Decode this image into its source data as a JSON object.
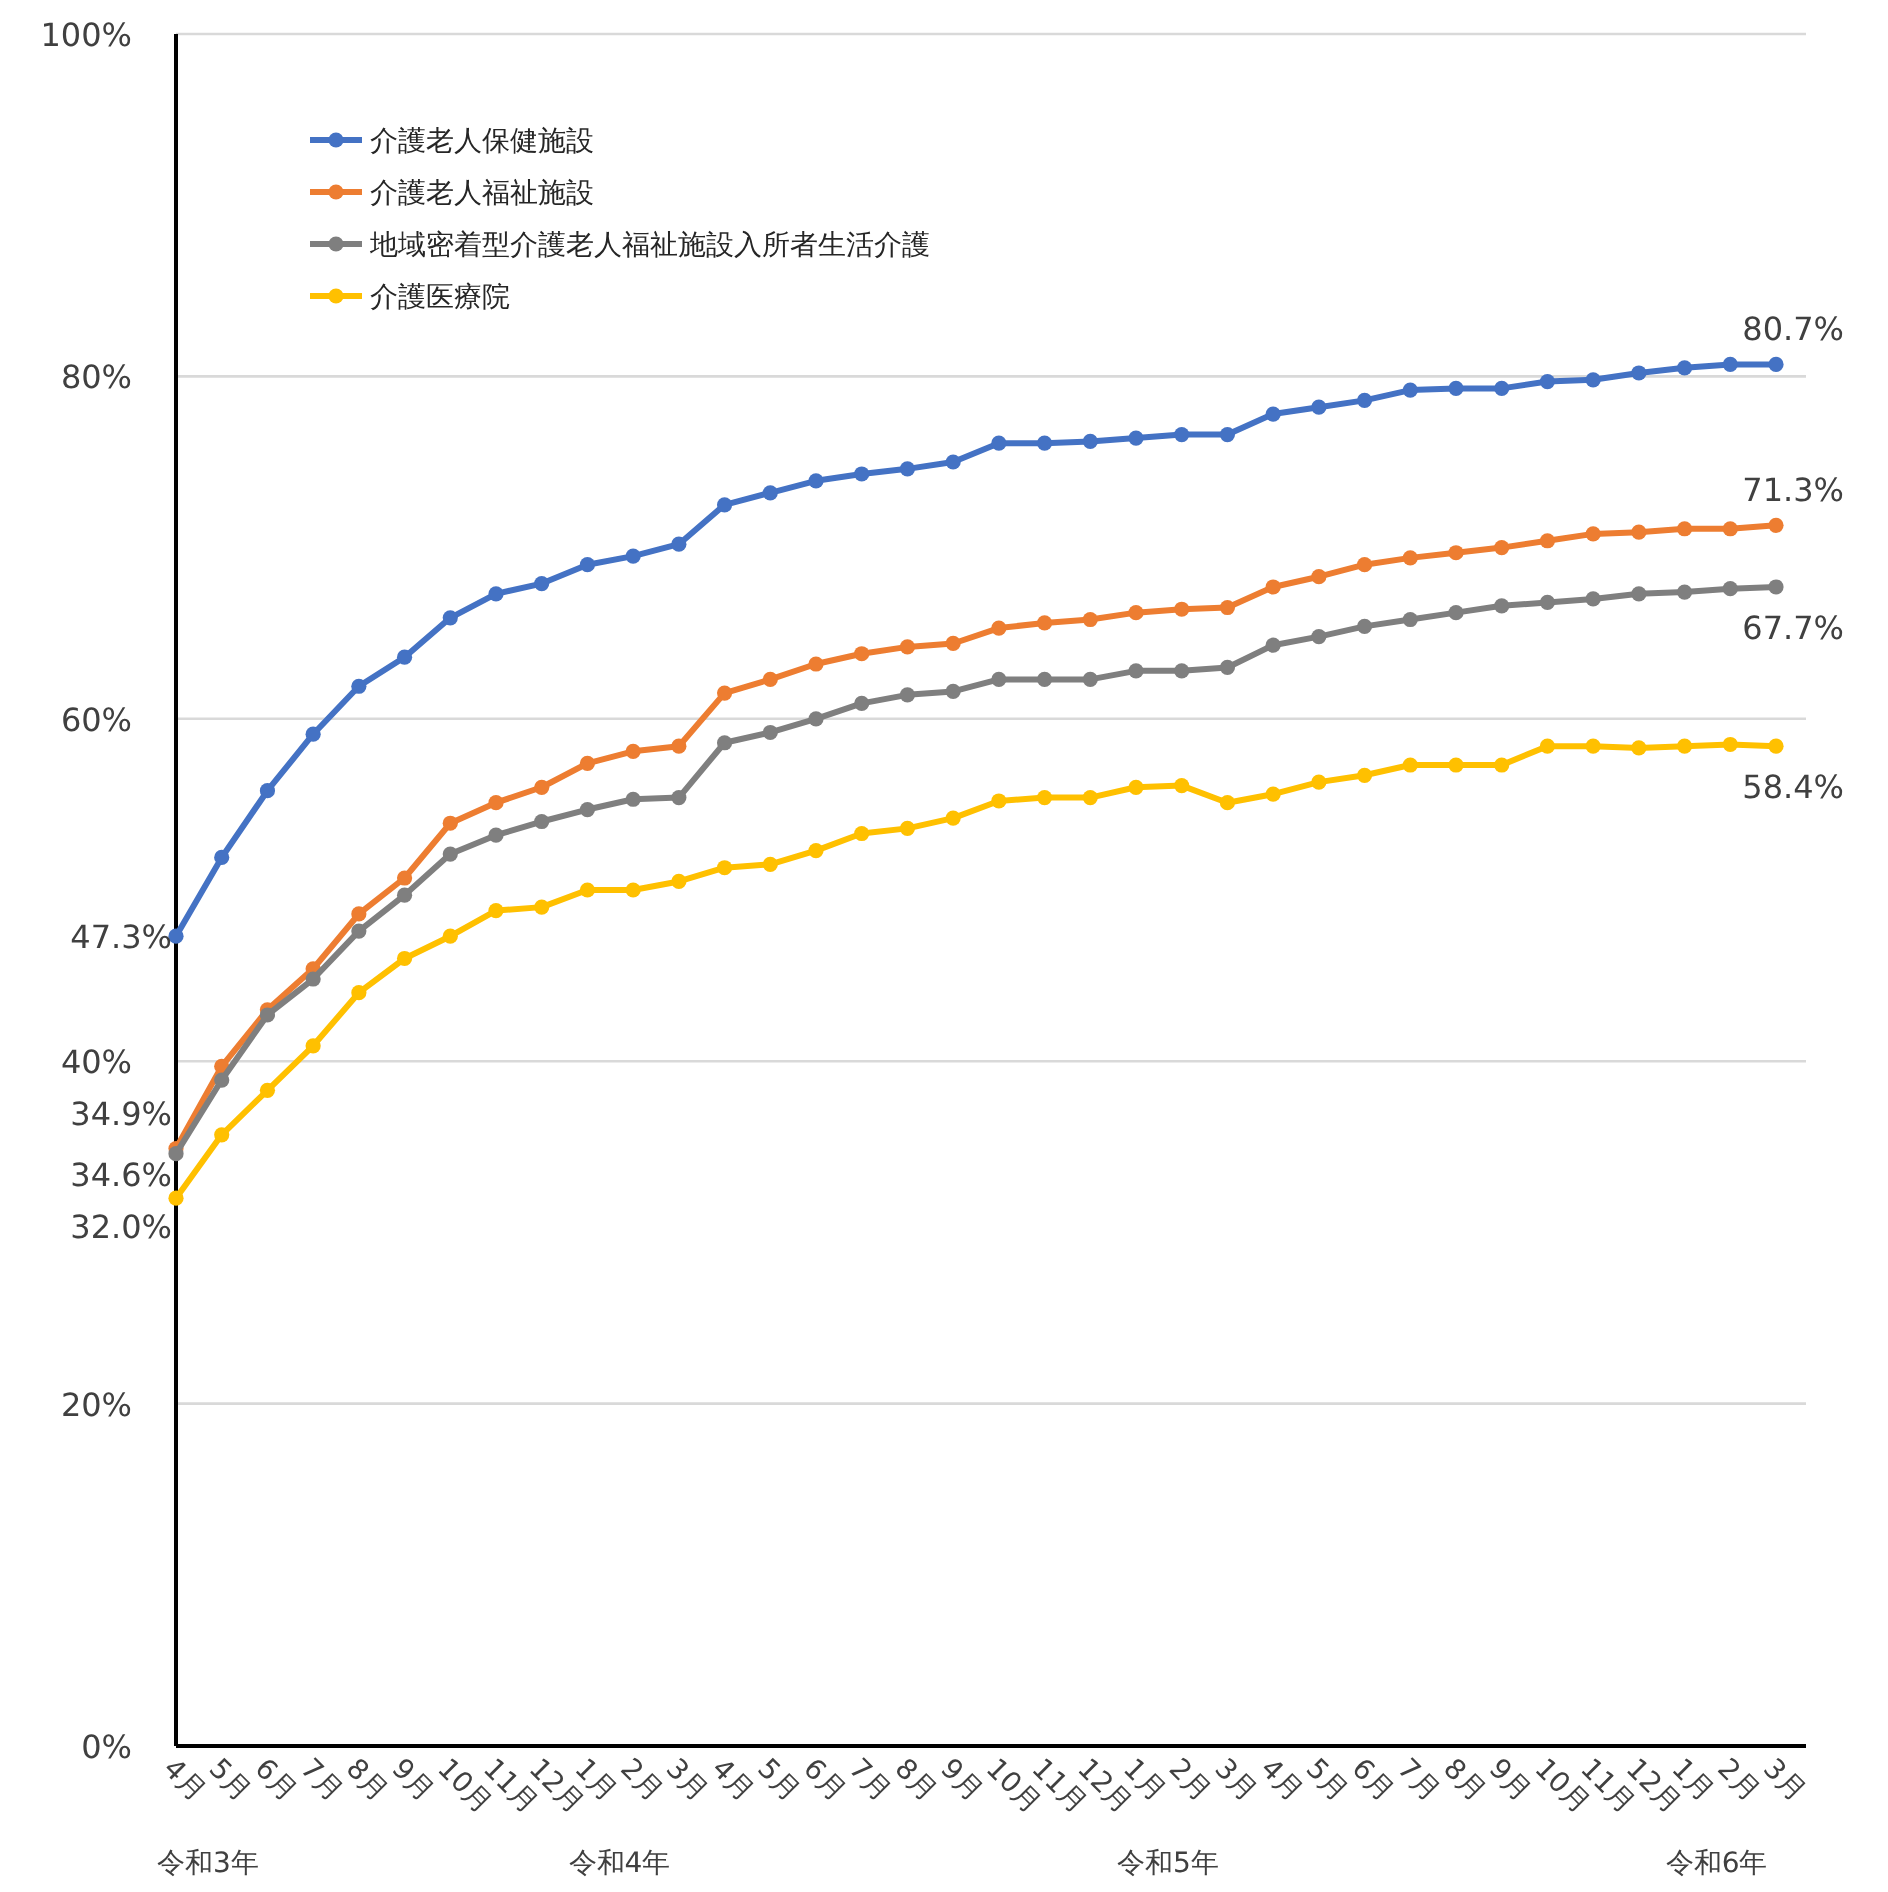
{
  "chart_data": {
    "type": "line",
    "categories": [
      "4月",
      "5月",
      "6月",
      "7月",
      "8月",
      "9月",
      "10月",
      "11月",
      "12月",
      "1月",
      "2月",
      "3月",
      "4月",
      "5月",
      "6月",
      "7月",
      "8月",
      "9月",
      "10月",
      "11月",
      "12月",
      "1月",
      "2月",
      "3月",
      "4月",
      "5月",
      "6月",
      "7月",
      "8月",
      "9月",
      "10月",
      "11月",
      "12月",
      "1月",
      "2月",
      "3月"
    ],
    "ylim": [
      0,
      100
    ],
    "yticks": [
      {
        "value": 0,
        "label": "0%"
      },
      {
        "value": 20,
        "label": "20%"
      },
      {
        "value": 40,
        "label": "40%"
      },
      {
        "value": 60,
        "label": "60%"
      },
      {
        "value": 80,
        "label": "80%"
      },
      {
        "value": 100,
        "label": "100%"
      }
    ],
    "grid": "y",
    "legend": "top left",
    "marker": "circle",
    "line_style": "solid",
    "annotations": [
      "令和3年",
      "令和4年",
      "令和5年",
      "令和6年"
    ],
    "series": [
      {
        "name": "介護老人保健施設",
        "color": "#4472c4",
        "values": [
          47.3,
          51.9,
          55.8,
          59.1,
          61.9,
          63.6,
          65.9,
          67.3,
          67.9,
          69.0,
          69.5,
          70.2,
          72.5,
          73.2,
          73.9,
          74.3,
          74.6,
          75.0,
          76.1,
          76.1,
          76.2,
          76.4,
          76.6,
          76.6,
          77.8,
          78.2,
          78.6,
          79.2,
          79.3,
          79.3,
          79.7,
          79.8,
          80.2,
          80.5,
          80.7,
          80.7
        ],
        "value_labels": [
          "47.3%",
          null,
          null,
          null,
          null,
          null,
          null,
          null,
          null,
          null,
          null,
          null,
          null,
          null,
          null,
          null,
          null,
          null,
          null,
          null,
          null,
          null,
          null,
          null,
          null,
          null,
          null,
          null,
          null,
          null,
          null,
          null,
          null,
          null,
          null,
          "80.7%"
        ]
      },
      {
        "name": "介護老人福祉施設",
        "color": "#ed7d31",
        "values": [
          34.9,
          39.7,
          43.0,
          45.4,
          48.6,
          50.7,
          53.9,
          55.1,
          56.0,
          57.4,
          58.1,
          58.4,
          61.5,
          62.3,
          63.2,
          63.8,
          64.2,
          64.4,
          65.3,
          65.6,
          65.8,
          66.2,
          66.4,
          66.5,
          67.7,
          68.3,
          69.0,
          69.4,
          69.7,
          70.0,
          70.4,
          70.8,
          70.9,
          71.1,
          71.1,
          71.3
        ],
        "value_labels": [
          "34.9%",
          null,
          null,
          null,
          null,
          null,
          null,
          null,
          null,
          null,
          null,
          null,
          null,
          null,
          null,
          null,
          null,
          null,
          null,
          null,
          null,
          null,
          null,
          null,
          null,
          null,
          null,
          null,
          null,
          null,
          null,
          null,
          null,
          null,
          null,
          "71.3%"
        ]
      },
      {
        "name": "地域密着型介護老人福祉施設入所者生活介護",
        "color": "#7f7f7f",
        "values": [
          34.6,
          38.9,
          42.7,
          44.8,
          47.6,
          49.7,
          52.1,
          53.2,
          54.0,
          54.7,
          55.3,
          55.4,
          58.6,
          59.2,
          60.0,
          60.9,
          61.4,
          61.6,
          62.3,
          62.3,
          62.3,
          62.8,
          62.8,
          63.0,
          64.3,
          64.8,
          65.4,
          65.8,
          66.2,
          66.6,
          66.8,
          67.0,
          67.3,
          67.4,
          67.6,
          67.7
        ],
        "value_labels": [
          "34.6%",
          null,
          null,
          null,
          null,
          null,
          null,
          null,
          null,
          null,
          null,
          null,
          null,
          null,
          null,
          null,
          null,
          null,
          null,
          null,
          null,
          null,
          null,
          null,
          null,
          null,
          null,
          null,
          null,
          null,
          null,
          null,
          null,
          null,
          null,
          "67.7%"
        ]
      },
      {
        "name": "介護医療院",
        "color": "#ffc000",
        "values": [
          32.0,
          35.7,
          38.3,
          40.9,
          44.0,
          46.0,
          47.3,
          48.8,
          49.0,
          50.0,
          50.0,
          50.5,
          51.3,
          51.5,
          52.3,
          53.3,
          53.6,
          54.2,
          55.2,
          55.4,
          55.4,
          56.0,
          56.1,
          55.1,
          55.6,
          56.3,
          56.7,
          57.3,
          57.3,
          57.3,
          58.4,
          58.4,
          58.3,
          58.4,
          58.5,
          58.4
        ],
        "value_labels": [
          "32.0%",
          null,
          null,
          null,
          null,
          null,
          null,
          null,
          null,
          null,
          null,
          null,
          null,
          null,
          null,
          null,
          null,
          null,
          null,
          null,
          null,
          null,
          null,
          null,
          null,
          null,
          null,
          null,
          null,
          null,
          null,
          null,
          null,
          null,
          null,
          "58.4%"
        ]
      }
    ]
  }
}
